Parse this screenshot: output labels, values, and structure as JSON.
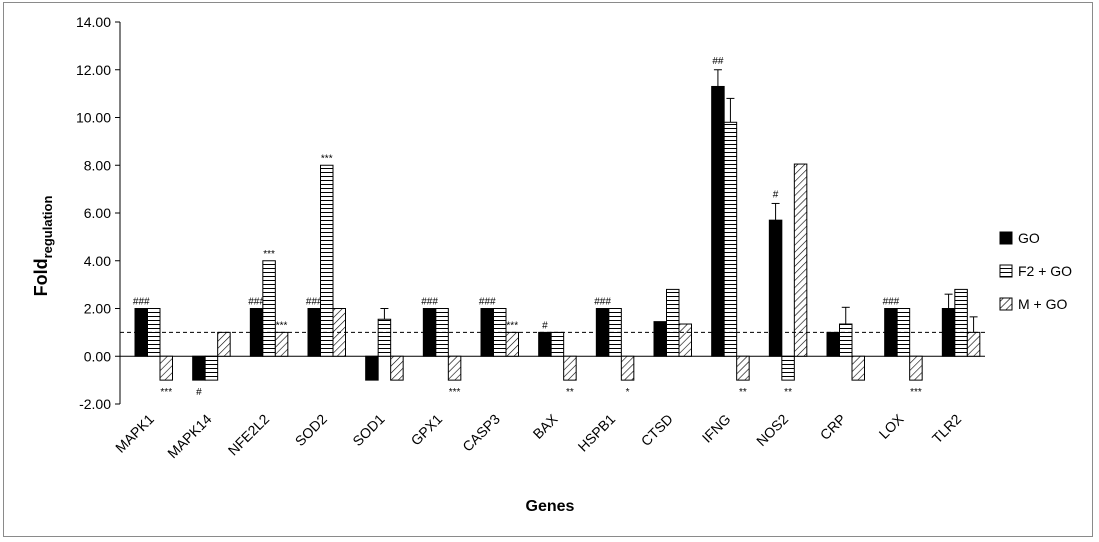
{
  "chart_data": {
    "type": "bar",
    "xlabel": "Genes",
    "ylabel_main": "Fold",
    "ylabel_sub": "regulation",
    "ylim": [
      -2,
      14
    ],
    "yticks": [
      "14.00",
      "12.00",
      "10.00",
      "8.00",
      "6.00",
      "4.00",
      "2.00",
      "0.00",
      "-2.00"
    ],
    "reference_line": 1,
    "grid": false,
    "legend_position": "right",
    "categories": [
      "MAPK1",
      "MAPK14",
      "NFE2L2",
      "SOD2",
      "SOD1",
      "GPX1",
      "CASP3",
      "BAX",
      "HSPB1",
      "CTSD",
      "IFNG",
      "NOS2",
      "CRP",
      "LOX",
      "TLR2"
    ],
    "series": [
      {
        "name": "GO",
        "pattern": "solid",
        "values": [
          2.0,
          -1.0,
          2.0,
          2.0,
          -1.0,
          2.0,
          2.0,
          1.0,
          2.0,
          1.45,
          11.3,
          5.7,
          1.0,
          2.0,
          2.0
        ],
        "errors": [
          0,
          0,
          0,
          0,
          0,
          0,
          0,
          0,
          0,
          0,
          0.7,
          0.7,
          0,
          0,
          0.6
        ],
        "annotations": [
          "###",
          "#",
          "###",
          "###",
          "",
          "###",
          "###",
          "#",
          "###",
          "",
          "##",
          "#",
          "",
          "###",
          ""
        ]
      },
      {
        "name": "F2 + GO",
        "pattern": "horizontal",
        "values": [
          2.0,
          -1.0,
          4.0,
          8.0,
          1.55,
          2.0,
          2.0,
          1.0,
          2.0,
          2.8,
          9.8,
          -1.0,
          1.35,
          2.0,
          2.8
        ],
        "errors": [
          0,
          0,
          0,
          0,
          0.45,
          0,
          0,
          0,
          0,
          0,
          1.0,
          0,
          0.7,
          0,
          0
        ],
        "annotations": [
          "",
          "",
          "***",
          "***",
          "",
          "",
          "",
          "",
          "",
          "",
          "",
          "**",
          "",
          "",
          ""
        ]
      },
      {
        "name": "M + GO",
        "pattern": "diagonal",
        "values": [
          -1.0,
          1.0,
          1.0,
          2.0,
          -1.0,
          -1.0,
          1.0,
          -1.0,
          -1.0,
          1.35,
          -1.0,
          8.05,
          -1.0,
          -1.0,
          1.0
        ],
        "errors": [
          0,
          0,
          0,
          0,
          0,
          0,
          0,
          0,
          0,
          0,
          0,
          0,
          0,
          0,
          0.65
        ],
        "annotations": [
          "***",
          "",
          "***",
          "",
          "",
          "***",
          "***",
          "**",
          "*",
          "",
          "**",
          "",
          "",
          "***",
          ""
        ]
      }
    ]
  }
}
